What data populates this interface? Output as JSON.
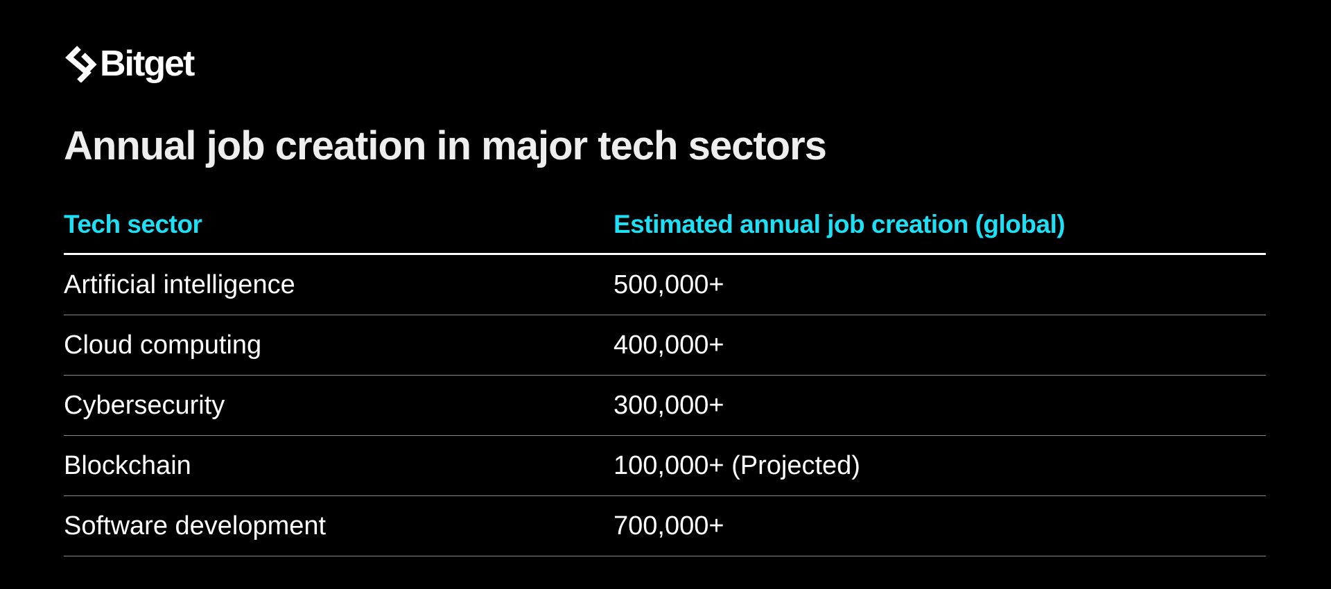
{
  "brand": {
    "name": "Bitget",
    "logo_icon": "bitget-arrow-mark"
  },
  "title": "Annual job creation in major tech sectors",
  "table": {
    "headers": {
      "sector": "Tech sector",
      "jobs": "Estimated annual job creation (global)"
    },
    "rows": [
      {
        "sector": "Artificial intelligence",
        "jobs": "500,000+"
      },
      {
        "sector": "Cloud computing",
        "jobs": "400,000+"
      },
      {
        "sector": "Cybersecurity",
        "jobs": "300,000+"
      },
      {
        "sector": "Blockchain",
        "jobs": "100,000+ (Projected)"
      },
      {
        "sector": "Software development",
        "jobs": "700,000+"
      }
    ]
  },
  "colors": {
    "background": "#000000",
    "header_accent": "#1fdff5",
    "text": "#ffffff",
    "divider": "#8a8a8a"
  }
}
